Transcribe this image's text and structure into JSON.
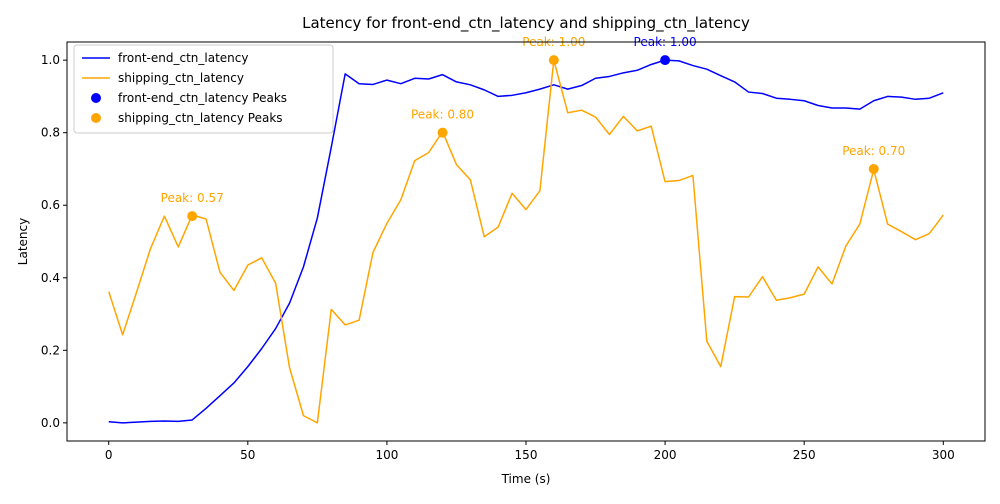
{
  "chart_data": {
    "type": "line",
    "title": "Latency for front-end_ctn_latency and shipping_ctn_latency",
    "xlabel": "Time (s)",
    "ylabel": "Latency",
    "xlim": [
      -15,
      315
    ],
    "ylim": [
      -0.05,
      1.05
    ],
    "xticks": [
      0,
      50,
      100,
      150,
      200,
      250,
      300
    ],
    "yticks": [
      0.0,
      0.2,
      0.4,
      0.6,
      0.8,
      1.0
    ],
    "xtick_labels": [
      "0",
      "50",
      "100",
      "150",
      "200",
      "250",
      "300"
    ],
    "ytick_labels": [
      "0.0",
      "0.2",
      "0.4",
      "0.6",
      "0.8",
      "1.0"
    ],
    "grid": false,
    "legend_position": "top-left",
    "x": [
      0,
      5,
      10,
      15,
      20,
      25,
      30,
      35,
      40,
      45,
      50,
      55,
      60,
      65,
      70,
      75,
      80,
      85,
      90,
      95,
      100,
      105,
      110,
      115,
      120,
      125,
      130,
      135,
      140,
      145,
      150,
      155,
      160,
      165,
      170,
      175,
      180,
      185,
      190,
      195,
      200,
      205,
      210,
      215,
      220,
      225,
      230,
      235,
      240,
      245,
      250,
      255,
      260,
      265,
      270,
      275,
      280,
      285,
      290,
      295,
      300
    ],
    "series": [
      {
        "name": "front-end_ctn_latency",
        "color": "#0000ff",
        "values": [
          0.003,
          0.0,
          0.002,
          0.004,
          0.005,
          0.004,
          0.008,
          0.04,
          0.075,
          0.11,
          0.155,
          0.205,
          0.26,
          0.33,
          0.43,
          0.565,
          0.76,
          0.962,
          0.935,
          0.933,
          0.945,
          0.935,
          0.95,
          0.948,
          0.96,
          0.94,
          0.932,
          0.918,
          0.9,
          0.903,
          0.91,
          0.92,
          0.932,
          0.92,
          0.93,
          0.95,
          0.955,
          0.965,
          0.972,
          0.988,
          1.0,
          0.998,
          0.985,
          0.975,
          0.957,
          0.94,
          0.912,
          0.908,
          0.895,
          0.892,
          0.888,
          0.875,
          0.868,
          0.868,
          0.865,
          0.888,
          0.9,
          0.898,
          0.892,
          0.895,
          0.91
        ]
      },
      {
        "name": "shipping_ctn_latency",
        "color": "#ffa500",
        "values": [
          0.362,
          0.243,
          0.36,
          0.48,
          0.57,
          0.485,
          0.573,
          0.562,
          0.415,
          0.365,
          0.435,
          0.455,
          0.385,
          0.152,
          0.02,
          0.0,
          0.313,
          0.27,
          0.283,
          0.47,
          0.55,
          0.615,
          0.723,
          0.745,
          0.803,
          0.712,
          0.67,
          0.513,
          0.54,
          0.633,
          0.588,
          0.64,
          1.0,
          0.855,
          0.862,
          0.843,
          0.795,
          0.845,
          0.805,
          0.818,
          0.665,
          0.668,
          0.682,
          0.225,
          0.155,
          0.348,
          0.347,
          0.403,
          0.338,
          0.345,
          0.355,
          0.43,
          0.383,
          0.488,
          0.548,
          0.698,
          0.548,
          0.527,
          0.505,
          0.522,
          0.573
        ]
      }
    ],
    "peaks": [
      {
        "series": "front-end_ctn_latency",
        "legend_name": "front-end_ctn_latency Peaks",
        "color": "#0000ff",
        "points": [
          {
            "x": 200,
            "y": 1.0,
            "label": "Peak: 1.00"
          }
        ]
      },
      {
        "series": "shipping_ctn_latency",
        "legend_name": "shipping_ctn_latency Peaks",
        "color": "#ffa500",
        "points": [
          {
            "x": 30,
            "y": 0.57,
            "label": "Peak: 0.57"
          },
          {
            "x": 120,
            "y": 0.8,
            "label": "Peak: 0.80"
          },
          {
            "x": 160,
            "y": 1.0,
            "label": "Peak: 1.00"
          },
          {
            "x": 275,
            "y": 0.7,
            "label": "Peak: 0.70"
          }
        ]
      }
    ]
  }
}
